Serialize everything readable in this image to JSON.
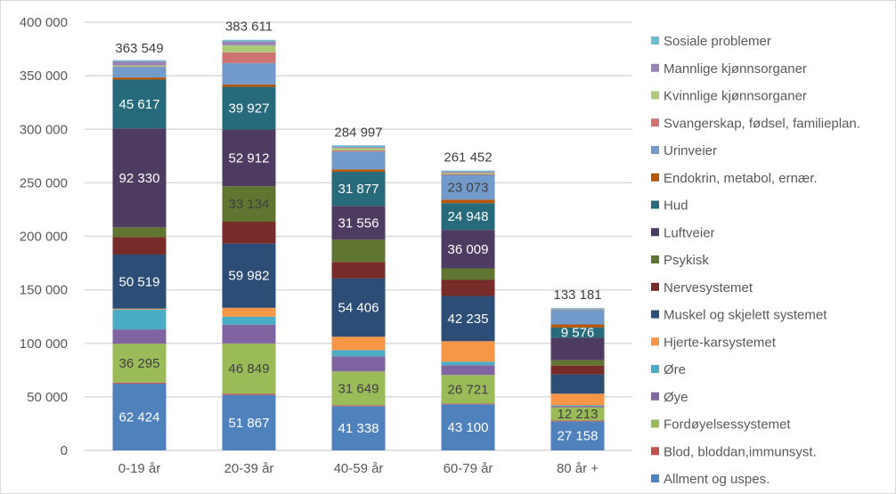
{
  "chart_data": {
    "type": "bar",
    "stacked": true,
    "title": "",
    "xlabel": "",
    "ylabel": "",
    "ylim": [
      0,
      400000
    ],
    "yticks": [
      0,
      50000,
      100000,
      150000,
      200000,
      250000,
      300000,
      350000,
      400000
    ],
    "ytick_labels": [
      "0",
      "50 000",
      "100 000",
      "150 000",
      "200 000",
      "250 000",
      "300 000",
      "350 000",
      "400 000"
    ],
    "grid": true,
    "legend_position": "right",
    "categories": [
      "0-19 år",
      "20-39 år",
      "40-59 år",
      "60-79 år",
      "80 år +"
    ],
    "totals": [
      363549,
      383611,
      284997,
      261452,
      133181
    ],
    "total_labels": [
      "363 549",
      "383 611",
      "284 997",
      "261 452",
      "133 181"
    ],
    "series": [
      {
        "name": "Allment og uspes.",
        "color": "#4F81BD",
        "values": [
          62424,
          51867,
          41338,
          43100,
          27158
        ],
        "labels": [
          "62 424",
          "51 867",
          "41 338",
          "43 100",
          "27 158"
        ],
        "label_color": "#ffffff"
      },
      {
        "name": "Blod, bloddan,immunsyst.",
        "color": "#C0504D",
        "values": [
          1000,
          1200,
          800,
          700,
          900
        ],
        "labels": [
          null,
          null,
          null,
          null,
          null
        ],
        "label_color": "#ffffff"
      },
      {
        "name": "Fordøyelsessystemet",
        "color": "#9BBB59",
        "values": [
          36295,
          46849,
          31649,
          26721,
          12213
        ],
        "labels": [
          "36 295",
          "46 849",
          "31 649",
          "26 721",
          "12 213"
        ],
        "label_color": "#404040"
      },
      {
        "name": "Øye",
        "color": "#8064A2",
        "values": [
          13300,
          17500,
          14100,
          9100,
          1200
        ],
        "labels": [
          null,
          null,
          null,
          null,
          null
        ],
        "label_color": "#ffffff"
      },
      {
        "name": "Øre",
        "color": "#4BACC6",
        "values": [
          18600,
          7500,
          5800,
          3300,
          700
        ],
        "labels": [
          null,
          null,
          null,
          null,
          null
        ],
        "label_color": "#ffffff"
      },
      {
        "name": "Hjerte-karsystemet",
        "color": "#F79646",
        "values": [
          800,
          8300,
          12500,
          19100,
          10800
        ],
        "labels": [
          null,
          null,
          null,
          null,
          null
        ],
        "label_color": "#ffffff"
      },
      {
        "name": "Muskel og skjelett systemet",
        "color": "#2C4D75",
        "values": [
          50519,
          59982,
          54406,
          42235,
          18000
        ],
        "labels": [
          "50 519",
          "59 982",
          "54 406",
          "42 235",
          null
        ],
        "label_color": "#ffffff"
      },
      {
        "name": "Nervesystemet",
        "color": "#772C2A",
        "values": [
          16300,
          20500,
          15500,
          15000,
          8300
        ],
        "labels": [
          null,
          null,
          null,
          null,
          null
        ],
        "label_color": "#ffffff"
      },
      {
        "name": "Psykisk",
        "color": "#5F7530",
        "values": [
          9200,
          33134,
          20800,
          10800,
          5000
        ],
        "labels": [
          null,
          "33 134",
          null,
          null,
          null
        ],
        "label_color": "#404040"
      },
      {
        "name": "Luftveier",
        "color": "#4D3B62",
        "values": [
          92330,
          52912,
          31556,
          36009,
          21000
        ],
        "labels": [
          "92 330",
          "52 912",
          "31 556",
          "36 009",
          null
        ],
        "label_color": "#ffffff"
      },
      {
        "name": "Hud",
        "color": "#276A7C",
        "values": [
          45617,
          39927,
          31877,
          24948,
          9576
        ],
        "labels": [
          "45 617",
          "39 927",
          "31 877",
          "24 948",
          "9 576"
        ],
        "label_color": "#ffffff"
      },
      {
        "name": "Endokrin, metabol, ernær.",
        "color": "#B65708",
        "values": [
          2000,
          2200,
          2200,
          3300,
          2800
        ],
        "labels": [
          null,
          null,
          null,
          null,
          null
        ],
        "label_color": "#ffffff"
      },
      {
        "name": "Urinveier",
        "color": "#729ACA",
        "values": [
          10000,
          20000,
          16600,
          23073,
          13900
        ],
        "labels": [
          null,
          null,
          null,
          "23 073",
          null
        ],
        "label_color": "#404040"
      },
      {
        "name": "Svangerskap, fødsel, familieplan.",
        "color": "#CD7371",
        "values": [
          300,
          10000,
          1100,
          800,
          200
        ],
        "labels": [
          null,
          null,
          null,
          null,
          null
        ],
        "label_color": "#ffffff"
      },
      {
        "name": "Kvinnlige kjønnsorganer",
        "color": "#AFC97A",
        "values": [
          1000,
          6600,
          2200,
          1200,
          300
        ],
        "labels": [
          null,
          null,
          null,
          null,
          null
        ],
        "label_color": "#ffffff"
      },
      {
        "name": "Mannlige kjønnsorganer",
        "color": "#9983B5",
        "values": [
          3900,
          3600,
          1100,
          1200,
          400
        ],
        "labels": [
          null,
          null,
          null,
          null,
          null
        ],
        "label_color": "#ffffff"
      },
      {
        "name": "Sosiale problemer",
        "color": "#6FBDD1",
        "values": [
          1000,
          1500,
          1500,
          900,
          700
        ],
        "labels": [
          null,
          null,
          null,
          null,
          null
        ],
        "label_color": "#ffffff"
      }
    ]
  }
}
